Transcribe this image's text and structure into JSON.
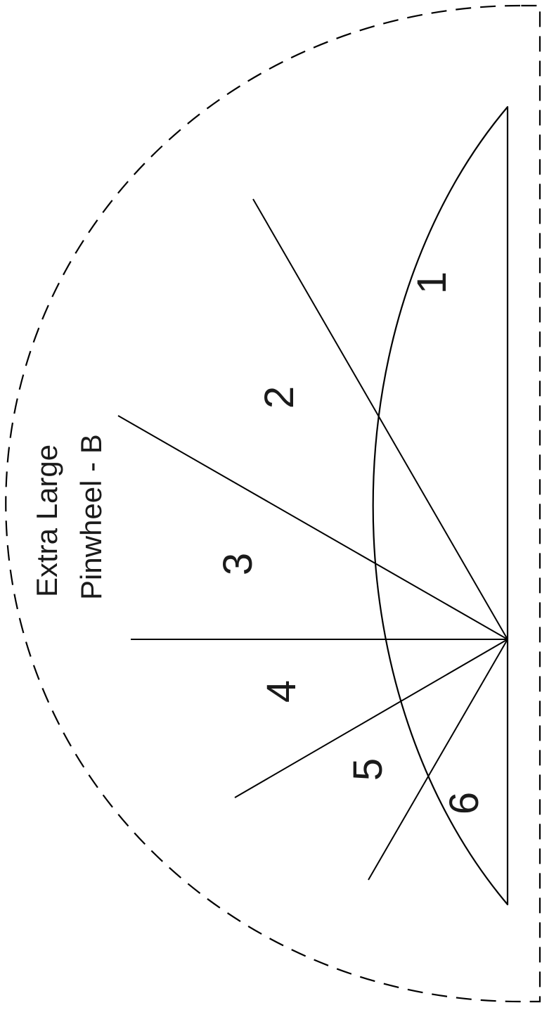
{
  "title": {
    "line1": "Extra Large",
    "line2": "Pinwheel - B"
  },
  "pieces": [
    {
      "label": "1"
    },
    {
      "label": "2"
    },
    {
      "label": "3"
    },
    {
      "label": "4"
    },
    {
      "label": "5"
    },
    {
      "label": "6"
    }
  ]
}
